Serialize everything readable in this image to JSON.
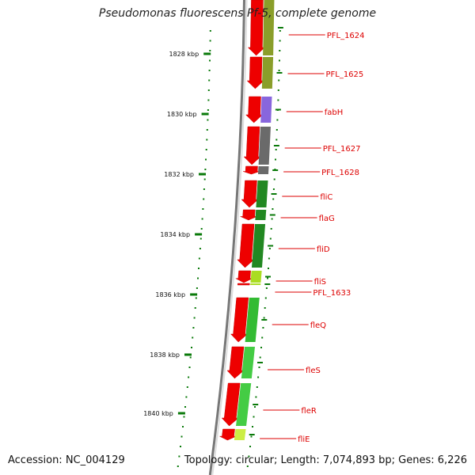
{
  "title": "Pseudomonas fluorescens Pf-5, complete genome",
  "footer": {
    "accession": "Accession: NC_004129",
    "stats": "Topology: circular; Length: 7,074,893 bp; Genes: 6,226"
  },
  "colors": {
    "forward_cds": "#ee0000",
    "backbone": "#888888",
    "tick": "#0a7a0a",
    "label": "#dd0000",
    "kbp_text": "#111111"
  },
  "kbp_ticks": [
    {
      "label": "1828 kbp"
    },
    {
      "label": "1830 kbp"
    },
    {
      "label": "1832 kbp"
    },
    {
      "label": "1834 kbp"
    },
    {
      "label": "1836 kbp"
    },
    {
      "label": "1838 kbp"
    },
    {
      "label": "1840 kbp"
    }
  ],
  "genes": [
    {
      "name": "PFL_1624",
      "color": "#8a9e2a"
    },
    {
      "name": "PFL_1625",
      "color": "#8a9e2a"
    },
    {
      "name": "fabH",
      "color": "#8866dd"
    },
    {
      "name": "PFL_1627",
      "color": "#6a6a6a"
    },
    {
      "name": "PFL_1628",
      "color": "#6a6a6a"
    },
    {
      "name": "fliC",
      "color": "#228822"
    },
    {
      "name": "flaG",
      "color": "#228822"
    },
    {
      "name": "fliD",
      "color": "#228822"
    },
    {
      "name": "fliS",
      "color": "#aadd22"
    },
    {
      "name": "PFL_1633",
      "color": "#aadd22"
    },
    {
      "name": "fleQ",
      "color": "#33bb33"
    },
    {
      "name": "fleS",
      "color": "#44cc44"
    },
    {
      "name": "fleR",
      "color": "#44cc44"
    },
    {
      "name": "fliE",
      "color": "#ccee44"
    }
  ]
}
